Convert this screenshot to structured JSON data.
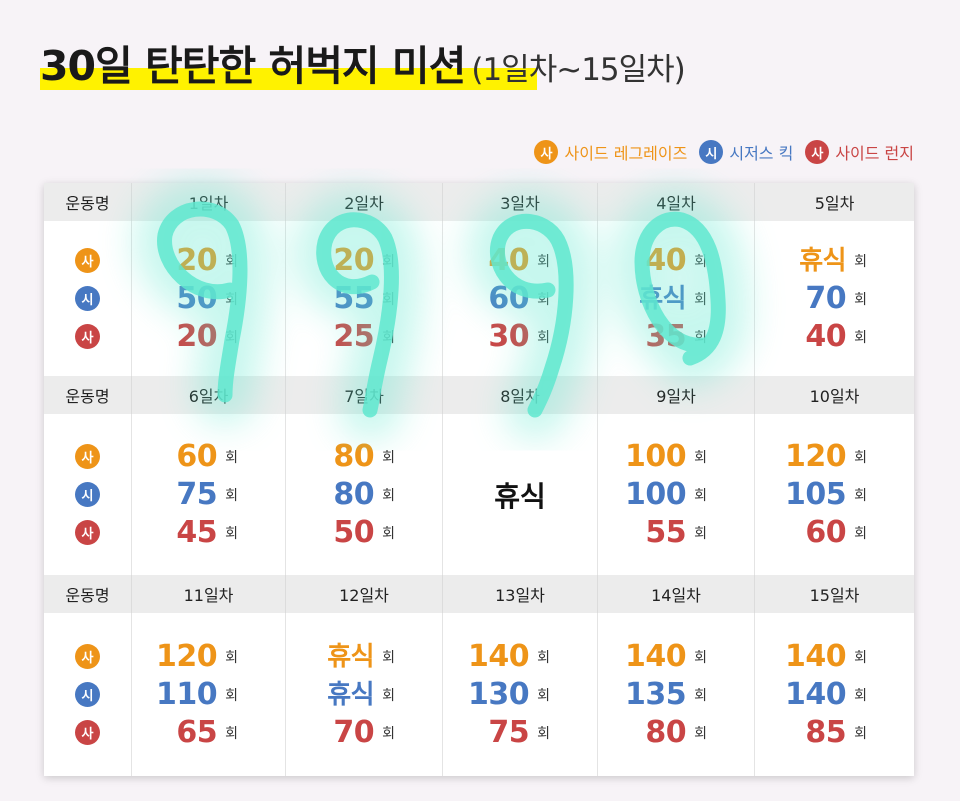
{
  "title": {
    "main": "30일 탄탄한 허벅지 미션",
    "sub": "(1일차~15일차)"
  },
  "colors": {
    "orange": "#ee9418",
    "blue": "#4778c2",
    "red": "#c94545"
  },
  "legend": [
    {
      "badge": "사",
      "label": "사이드 레그레이즈",
      "color": "orange"
    },
    {
      "badge": "시",
      "label": "시저스 킥",
      "color": "blue"
    },
    {
      "badge": "사",
      "label": "사이드 런지",
      "color": "red"
    }
  ],
  "table": {
    "header_label": "운동명",
    "unit": "회",
    "exercise_badges": [
      "사",
      "시",
      "사"
    ],
    "rows": [
      {
        "days": [
          {
            "day": "1일차",
            "values": [
              "20",
              "50",
              "20"
            ]
          },
          {
            "day": "2일차",
            "values": [
              "20",
              "55",
              "25"
            ]
          },
          {
            "day": "3일차",
            "values": [
              "40",
              "60",
              "30"
            ]
          },
          {
            "day": "4일차",
            "values": [
              "40",
              "휴식",
              "35"
            ]
          },
          {
            "day": "5일차",
            "values": [
              "휴식",
              "70",
              "40"
            ]
          }
        ]
      },
      {
        "days": [
          {
            "day": "6일차",
            "values": [
              "60",
              "75",
              "45"
            ]
          },
          {
            "day": "7일차",
            "values": [
              "80",
              "80",
              "50"
            ]
          },
          {
            "day": "8일차",
            "rest": "휴식"
          },
          {
            "day": "9일차",
            "values": [
              "100",
              "100",
              "55"
            ]
          },
          {
            "day": "10일차",
            "values": [
              "120",
              "105",
              "60"
            ]
          }
        ]
      },
      {
        "days": [
          {
            "day": "11일차",
            "values": [
              "120",
              "110",
              "65"
            ]
          },
          {
            "day": "12일차",
            "values": [
              "휴식",
              "휴식",
              "70"
            ]
          },
          {
            "day": "13일차",
            "values": [
              "140",
              "130",
              "75"
            ]
          },
          {
            "day": "14일차",
            "values": [
              "140",
              "135",
              "80"
            ]
          },
          {
            "day": "15일차",
            "values": [
              "140",
              "140",
              "85"
            ]
          }
        ]
      }
    ]
  },
  "handwriting": {
    "text": "9090",
    "color": "#5fe8cf"
  }
}
